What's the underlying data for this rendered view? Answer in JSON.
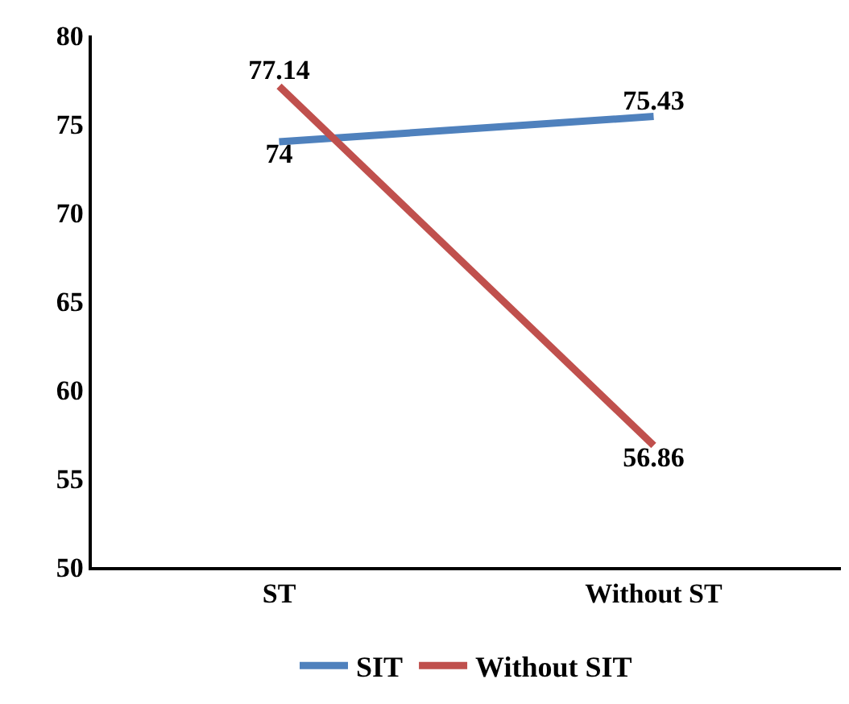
{
  "chart_data": {
    "type": "line",
    "categories": [
      "ST",
      "Without ST"
    ],
    "series": [
      {
        "name": "SIT",
        "color": "#4f81bd",
        "values": [
          74,
          75.43
        ]
      },
      {
        "name": "Without SIT",
        "color": "#c0504d",
        "values": [
          77.14,
          56.86
        ]
      }
    ],
    "ylim": [
      50,
      80
    ],
    "yticks": [
      50,
      55,
      60,
      65,
      70,
      75,
      80
    ],
    "grid": false,
    "legend": "bottom",
    "data_labels": true,
    "marker": "none",
    "line_style": "solid"
  }
}
